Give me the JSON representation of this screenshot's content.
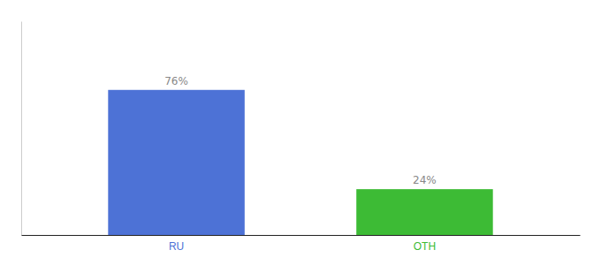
{
  "chart_data": {
    "type": "bar",
    "categories": [
      "RU",
      "OTH"
    ],
    "values": [
      76,
      24
    ],
    "value_labels": [
      "76%",
      "24%"
    ],
    "colors": [
      "#4d72d6",
      "#3dbb35"
    ],
    "ylim": [
      0,
      112
    ],
    "data_labels": true,
    "tick_labels": "x",
    "grid": false
  }
}
